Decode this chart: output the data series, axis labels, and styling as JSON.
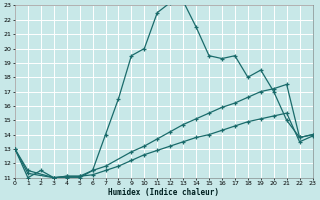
{
  "xlabel": "Humidex (Indice chaleur)",
  "bg_color": "#c8e8e8",
  "grid_color": "#ffffff",
  "line_color": "#1a6b6b",
  "xlim": [
    0,
    23
  ],
  "ylim": [
    11,
    23
  ],
  "xticks": [
    0,
    1,
    2,
    3,
    4,
    5,
    6,
    7,
    8,
    9,
    10,
    11,
    12,
    13,
    14,
    15,
    16,
    17,
    18,
    19,
    20,
    21,
    22,
    23
  ],
  "yticks": [
    11,
    12,
    13,
    14,
    15,
    16,
    17,
    18,
    19,
    20,
    21,
    22,
    23
  ],
  "curve1_x": [
    0,
    1,
    2,
    3,
    4,
    5,
    6,
    7,
    8,
    9,
    10,
    11,
    12,
    13,
    14,
    15,
    16,
    17,
    18,
    19,
    20,
    21,
    22,
    23
  ],
  "curve1_y": [
    13,
    11,
    11.5,
    11,
    11,
    11,
    11.5,
    14,
    16.5,
    19.5,
    20,
    22.5,
    23.2,
    23.3,
    21.5,
    19.5,
    19.3,
    19.5,
    18,
    18.5,
    17,
    15,
    13.8,
    14.0
  ],
  "curve2_x": [
    0,
    1,
    3,
    4,
    5,
    6,
    7,
    9,
    10,
    11,
    12,
    13,
    14,
    15,
    16,
    17,
    18,
    19,
    20,
    21,
    22,
    23
  ],
  "curve2_y": [
    13,
    11.5,
    11,
    11.1,
    11.1,
    11.5,
    11.8,
    12.8,
    13.2,
    13.7,
    14.2,
    14.7,
    15.1,
    15.5,
    15.9,
    16.2,
    16.6,
    17.0,
    17.2,
    17.5,
    13.8,
    14.0
  ],
  "curve3_x": [
    0,
    1,
    3,
    4,
    5,
    6,
    7,
    8,
    9,
    10,
    11,
    12,
    13,
    14,
    15,
    16,
    17,
    18,
    19,
    20,
    21,
    22,
    23
  ],
  "curve3_y": [
    13,
    11.3,
    11,
    11.1,
    11.1,
    11.2,
    11.5,
    11.8,
    12.2,
    12.6,
    12.9,
    13.2,
    13.5,
    13.8,
    14.0,
    14.3,
    14.6,
    14.9,
    15.1,
    15.3,
    15.5,
    13.5,
    13.9
  ]
}
